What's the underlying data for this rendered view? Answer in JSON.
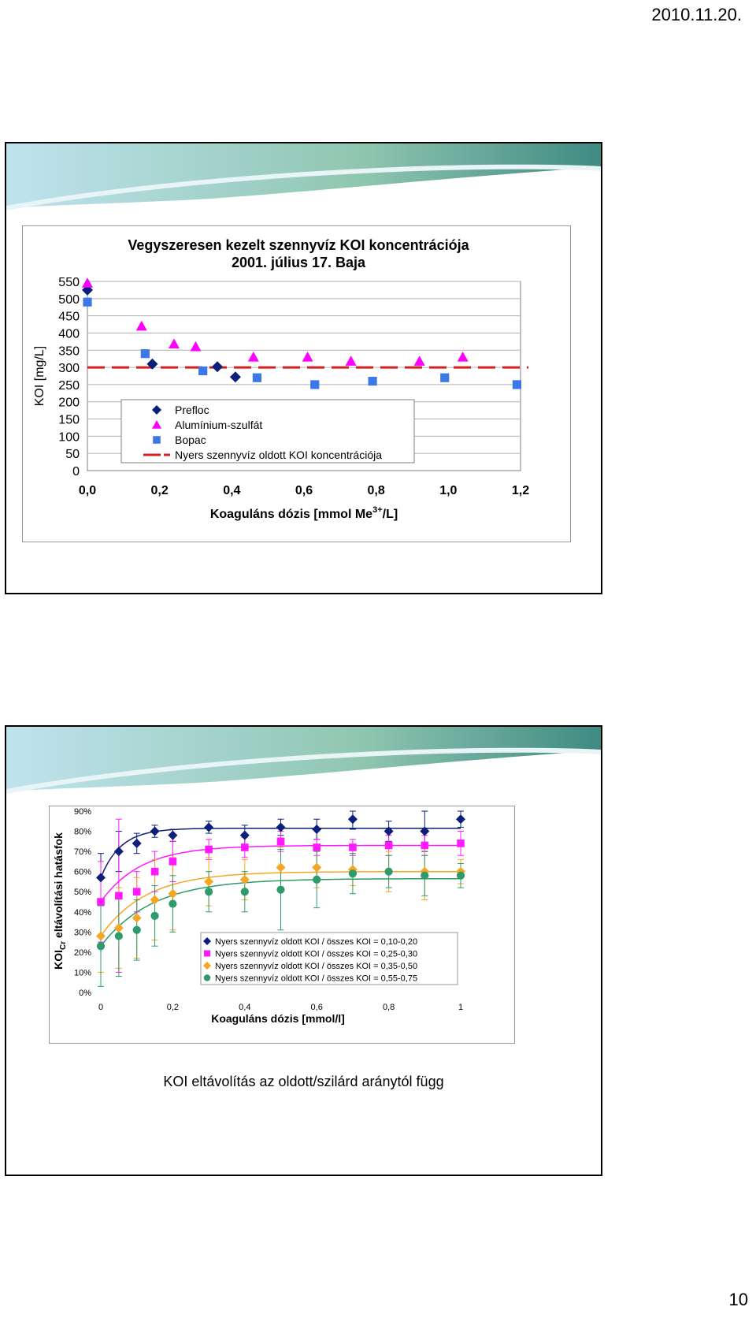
{
  "header": {
    "date": "2010.11.20."
  },
  "footer": {
    "page_number": "10"
  },
  "slide1": {
    "chart_data": {
      "type": "scatter",
      "title": "Vegyszeresen kezelt szennyvíz KOI koncentrációja",
      "subtitle": "2001. július 17. Baja",
      "xlabel": "Koaguláns dózis [mmol Me",
      "xlabel_sup": "3+",
      "xlabel_end": "/L]",
      "ylabel": "KOI [mg/L]",
      "xlim": [
        0,
        1.2
      ],
      "ylim": [
        0,
        550
      ],
      "x_ticks": [
        "0,0",
        "0,2",
        "0,4",
        "0,6",
        "0,8",
        "1,0",
        "1,2"
      ],
      "y_ticks": [
        "550",
        "500",
        "450",
        "400",
        "350",
        "300",
        "250",
        "200",
        "150",
        "100",
        "50",
        "0"
      ],
      "grid": "horizontal",
      "legend": "bottom-center",
      "series": [
        {
          "name": "Prefloc",
          "marker": "diamond",
          "color": "#0b1f7a",
          "points": [
            [
              0.0,
              525
            ],
            [
              0.18,
              310
            ],
            [
              0.36,
              302
            ],
            [
              0.41,
              272
            ]
          ]
        },
        {
          "name": "Alumínium-szulfát",
          "marker": "triangle",
          "color": "#ff00ff",
          "points": [
            [
              0.0,
              545
            ],
            [
              0.15,
              420
            ],
            [
              0.24,
              368
            ],
            [
              0.3,
              360
            ],
            [
              0.46,
              330
            ],
            [
              0.61,
              330
            ],
            [
              0.73,
              318
            ],
            [
              0.92,
              318
            ],
            [
              1.04,
              330
            ]
          ]
        },
        {
          "name": "Bopac",
          "marker": "square",
          "color": "#3b78e7",
          "points": [
            [
              0.0,
              490
            ],
            [
              0.16,
              340
            ],
            [
              0.32,
              290
            ],
            [
              0.47,
              270
            ],
            [
              0.63,
              250
            ],
            [
              0.79,
              260
            ],
            [
              0.99,
              270
            ],
            [
              1.19,
              250
            ]
          ]
        }
      ],
      "reference_line": {
        "name": "Nyers szennyvíz oldott KOI koncentrációja",
        "value": 300,
        "color": "#d32020"
      }
    }
  },
  "slide2": {
    "caption": "KOI eltávolítás az oldott/szilárd aránytól függ",
    "chart_data": {
      "type": "scatter",
      "xlabel": "Koaguláns dózis [mmol/l]",
      "ylabel": "KOI",
      "ylabel_sub": "Cr",
      "ylabel_end": " eltávolítási hatásfok",
      "xlim": [
        0,
        1
      ],
      "ylim": [
        0,
        0.9
      ],
      "x_ticks": [
        "0",
        "0,2",
        "0,4",
        "0,6",
        "0,8",
        "1"
      ],
      "y_ticks": [
        "90%",
        "80%",
        "70%",
        "60%",
        "50%",
        "40%",
        "30%",
        "20%",
        "10%",
        "0%"
      ],
      "grid": "none",
      "legend": "bottom-right",
      "series": [
        {
          "name": "Nyers szennyvíz oldott KOI / összes KOI = 0,10-0,20",
          "marker": "diamond",
          "color": "#0b1f7a",
          "points": [
            [
              0,
              0.57
            ],
            [
              0.05,
              0.7
            ],
            [
              0.1,
              0.74
            ],
            [
              0.15,
              0.8
            ],
            [
              0.2,
              0.78
            ],
            [
              0.3,
              0.82
            ],
            [
              0.4,
              0.78
            ],
            [
              0.5,
              0.82
            ],
            [
              0.6,
              0.81
            ],
            [
              0.7,
              0.86
            ],
            [
              0.8,
              0.8
            ],
            [
              0.9,
              0.8
            ],
            [
              1.0,
              0.86
            ]
          ],
          "errors": [
            0.12,
            0.1,
            0.05,
            0.03,
            0.03,
            0.03,
            0.05,
            0.04,
            0.05,
            0.05,
            0.05,
            0.1,
            0.04
          ]
        },
        {
          "name": "Nyers szennyvíz oldott KOI / összes KOI = 0,25-0,30",
          "marker": "square",
          "color": "#ff19ff",
          "points": [
            [
              0,
              0.45
            ],
            [
              0.05,
              0.48
            ],
            [
              0.1,
              0.5
            ],
            [
              0.15,
              0.6
            ],
            [
              0.2,
              0.65
            ],
            [
              0.3,
              0.71
            ],
            [
              0.4,
              0.72
            ],
            [
              0.5,
              0.75
            ],
            [
              0.6,
              0.72
            ],
            [
              0.7,
              0.72
            ],
            [
              0.8,
              0.73
            ],
            [
              0.9,
              0.73
            ],
            [
              1.0,
              0.74
            ]
          ],
          "errors": [
            0.2,
            0.38,
            0.1,
            0.1,
            0.1,
            0.05,
            0.05,
            0.05,
            0.04,
            0.04,
            0.05,
            0.05,
            0.06
          ]
        },
        {
          "name": "Nyers szennyvíz oldott KOI / összes KOI = 0,35-0,50",
          "marker": "diamond",
          "color": "#f5a623",
          "points": [
            [
              0,
              0.28
            ],
            [
              0.05,
              0.32
            ],
            [
              0.1,
              0.37
            ],
            [
              0.15,
              0.46
            ],
            [
              0.2,
              0.49
            ],
            [
              0.3,
              0.55
            ],
            [
              0.4,
              0.56
            ],
            [
              0.5,
              0.62
            ],
            [
              0.6,
              0.62
            ],
            [
              0.7,
              0.61
            ],
            [
              0.8,
              0.6
            ],
            [
              0.9,
              0.6
            ],
            [
              1.0,
              0.6
            ]
          ],
          "errors": [
            0.18,
            0.2,
            0.2,
            0.2,
            0.18,
            0.12,
            0.1,
            0.1,
            0.1,
            0.08,
            0.1,
            0.14,
            0.06
          ]
        },
        {
          "name": "Nyers szennyvíz oldott KOI / összes KOI = 0,55-0,75",
          "marker": "circle",
          "color": "#2e9c6a",
          "points": [
            [
              0,
              0.23
            ],
            [
              0.05,
              0.28
            ],
            [
              0.1,
              0.31
            ],
            [
              0.15,
              0.38
            ],
            [
              0.2,
              0.44
            ],
            [
              0.3,
              0.5
            ],
            [
              0.4,
              0.5
            ],
            [
              0.5,
              0.51
            ],
            [
              0.6,
              0.56
            ],
            [
              0.7,
              0.59
            ],
            [
              0.8,
              0.6
            ],
            [
              0.9,
              0.58
            ],
            [
              1.0,
              0.58
            ]
          ],
          "errors": [
            0.2,
            0.2,
            0.15,
            0.15,
            0.14,
            0.1,
            0.1,
            0.2,
            0.14,
            0.1,
            0.08,
            0.1,
            0.06
          ]
        }
      ],
      "trend_lines": [
        {
          "color": "#0b1f7a",
          "start": 0.57,
          "plateau": 0.815,
          "rate": 18
        },
        {
          "color": "#ff19ff",
          "start": 0.45,
          "plateau": 0.73,
          "rate": 9
        },
        {
          "color": "#f5a623",
          "start": 0.28,
          "plateau": 0.6,
          "rate": 8
        },
        {
          "color": "#2e9c6a",
          "start": 0.23,
          "plateau": 0.565,
          "rate": 7
        }
      ]
    }
  }
}
